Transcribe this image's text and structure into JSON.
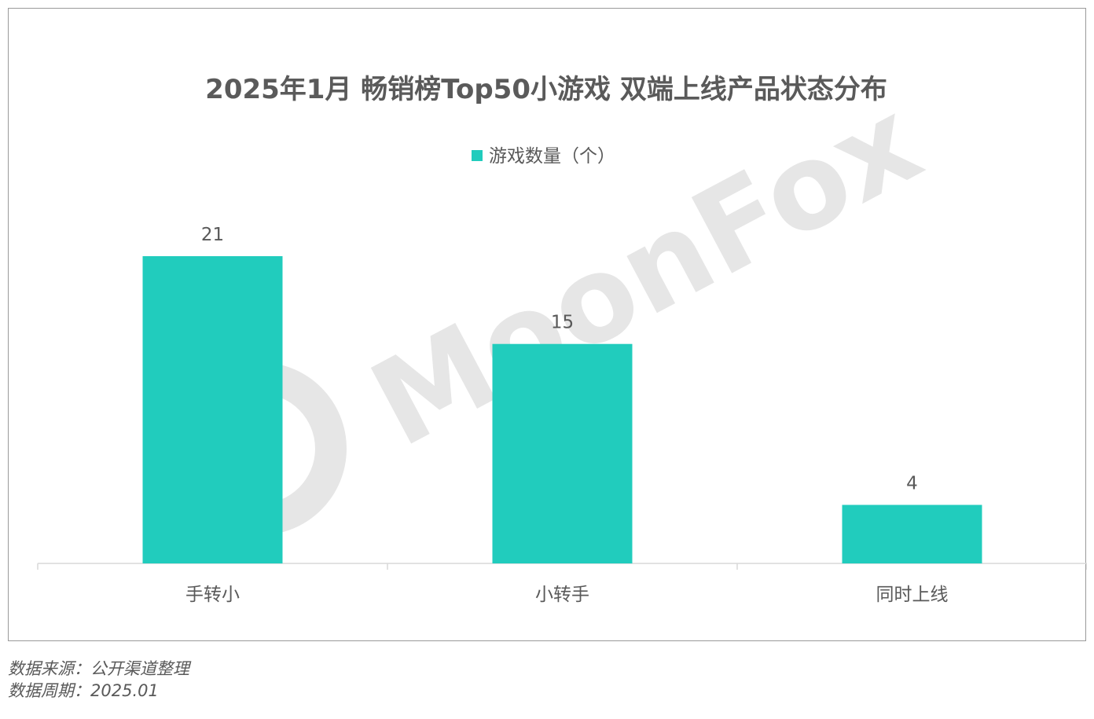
{
  "chart_data": {
    "type": "bar",
    "title": "2025年1月 畅销榜Top50小游戏 双端上线产品状态分布",
    "categories": [
      "手转小",
      "小转手",
      "同时上线"
    ],
    "series": [
      {
        "name": "游戏数量（个）",
        "values": [
          21,
          15,
          4
        ],
        "color": "#21ccbd"
      }
    ],
    "data_labels": [
      "21",
      "15",
      "4"
    ],
    "legend_position": "top-center",
    "grid": false,
    "y_axis_visible": false,
    "ylim": [
      0,
      21
    ]
  },
  "watermark": {
    "text": "MoonFox"
  },
  "footer": {
    "source": "数据来源：公开渠道整理",
    "period": "数据周期：2025.01"
  }
}
